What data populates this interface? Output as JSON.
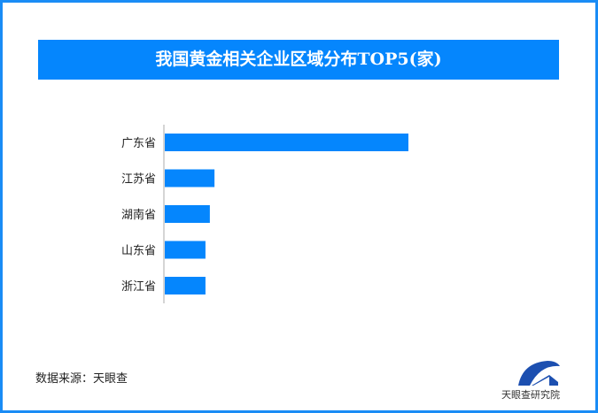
{
  "title": "我国黄金相关企业区域分布TOP5(家)",
  "chart_data": {
    "type": "bar",
    "orientation": "horizontal",
    "title": "我国黄金相关企业区域分布TOP5(家)",
    "categories": [
      "广东省",
      "江苏省",
      "湖南省",
      "山东省",
      "浙江省"
    ],
    "values": [
      100,
      20.4,
      18.5,
      16.7,
      16.7
    ],
    "value_labels_shown": false,
    "grid": false,
    "bar_color": "#0586fd"
  },
  "source": "数据来源：天眼查",
  "logo_text": "天眼查研究院",
  "colors": {
    "accent": "#0586fd",
    "frame": "#1a8cf5"
  }
}
